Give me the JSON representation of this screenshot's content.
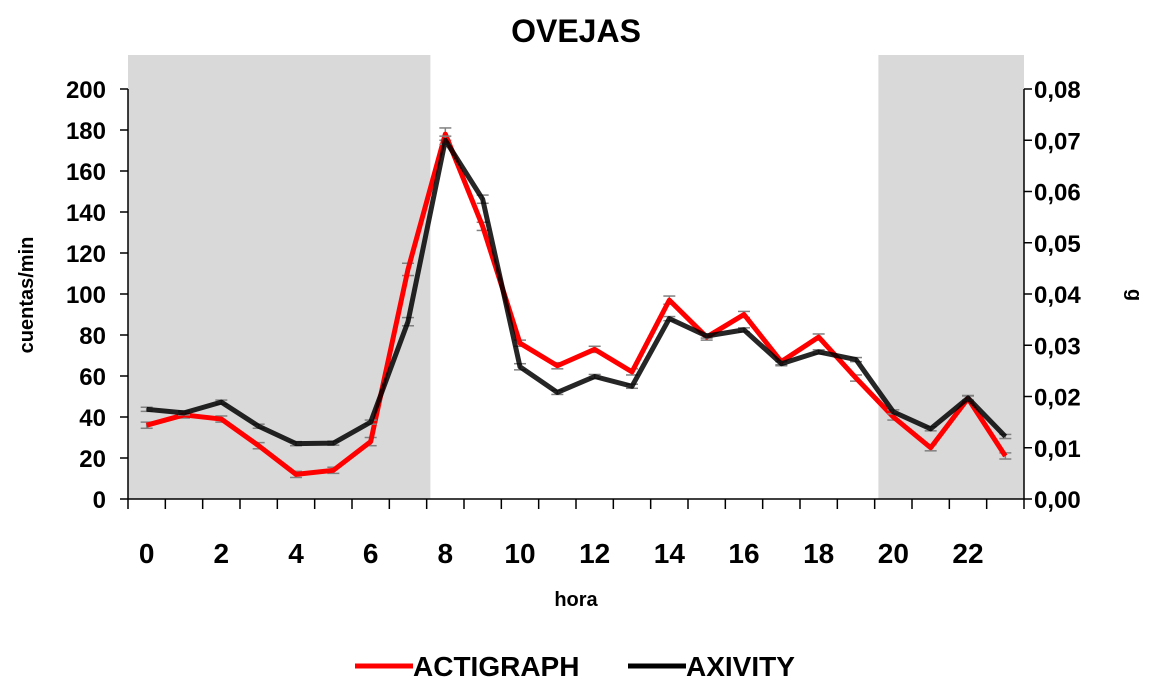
{
  "chart_data": {
    "type": "line",
    "title": "OVEJAS",
    "xlabel": "hora",
    "ylabel": "cuentas/min",
    "y2label": "g",
    "x": [
      0,
      1,
      2,
      3,
      4,
      5,
      6,
      7,
      8,
      9,
      10,
      11,
      12,
      13,
      14,
      15,
      16,
      17,
      18,
      19,
      20,
      21,
      22,
      23
    ],
    "x_tick_labels": [
      "0",
      "2",
      "4",
      "6",
      "8",
      "10",
      "12",
      "14",
      "16",
      "18",
      "20",
      "22"
    ],
    "ylim": [
      0,
      200
    ],
    "y_ticks": [
      "0",
      "20",
      "40",
      "60",
      "80",
      "100",
      "120",
      "140",
      "160",
      "180",
      "200"
    ],
    "y2lim": [
      0,
      0.08
    ],
    "y2_ticks": [
      "0,00",
      "0,01",
      "0,02",
      "0,03",
      "0,04",
      "0,05",
      "0,06",
      "0,07",
      "0,08"
    ],
    "shaded_hours": [
      [
        -0.5,
        7.6
      ],
      [
        19.6,
        23.5
      ]
    ],
    "grid": false,
    "legend_position": "bottom",
    "series": [
      {
        "name": "ACTIGRAPH",
        "axis": "left",
        "color": "#ff0000",
        "values": [
          36,
          41,
          39,
          26,
          12,
          14,
          28,
          112,
          178,
          133,
          76,
          65,
          73,
          62,
          97,
          79,
          90,
          67,
          79,
          59,
          40,
          25,
          49,
          21
        ],
        "errors": [
          1.5,
          1.5,
          1.5,
          1.5,
          1.5,
          1.5,
          2,
          3,
          3,
          2,
          1.5,
          1.5,
          1.5,
          1.5,
          2,
          1.5,
          1.5,
          1.5,
          1.5,
          1.5,
          1.5,
          1.5,
          1.5,
          1.5
        ]
      },
      {
        "name": "AXIVITY",
        "axis": "right",
        "color": "#000000",
        "values": [
          0.0175,
          0.0168,
          0.0189,
          0.0142,
          0.0108,
          0.0109,
          0.015,
          0.0346,
          0.07,
          0.0585,
          0.0258,
          0.0208,
          0.0239,
          0.022,
          0.0352,
          0.0318,
          0.033,
          0.0264,
          0.0287,
          0.0272,
          0.017,
          0.0137,
          0.0197,
          0.0122
        ],
        "errors": [
          0.0004,
          0.0004,
          0.0004,
          0.0004,
          0.0004,
          0.0004,
          0.0004,
          0.0008,
          0.0008,
          0.0008,
          0.0006,
          0.0004,
          0.0004,
          0.0004,
          0.0004,
          0.0004,
          0.0004,
          0.0004,
          0.0004,
          0.0004,
          0.0004,
          0.0004,
          0.0004,
          0.0004
        ]
      }
    ]
  }
}
